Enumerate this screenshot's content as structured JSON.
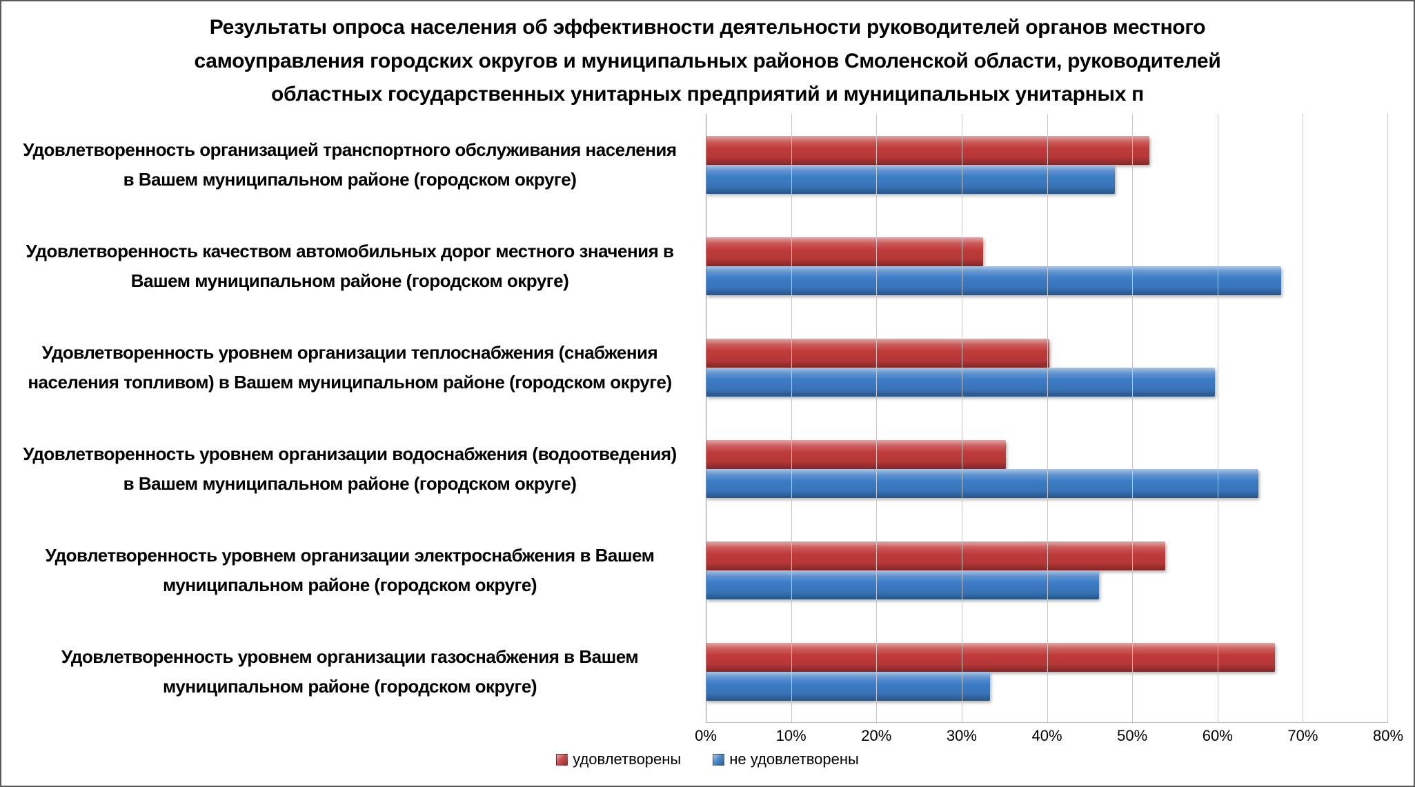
{
  "title_lines": [
    "Результаты опроса населения об эффективности деятельности руководителей органов местного",
    "самоуправления городских округов и муниципальных районов Смоленской области, руководителей",
    "областных государственных унитарных предприятий и муниципальных унитарных п"
  ],
  "chart_data": {
    "type": "bar",
    "orientation": "horizontal",
    "title": "Результаты опроса населения об эффективности деятельности руководителей органов местного самоуправления городских округов и муниципальных районов Смоленской области, руководителей областных государственных унитарных предприятий и муниципальных унитарных п",
    "categories": [
      "Удовлетворенность организацией транспортного обслуживания населения в Вашем муниципальном районе (городском округе)",
      "Удовлетворенность качеством автомобильных дорог местного значения в Вашем муниципальном районе (городском округе)",
      "Удовлетворенность уровнем организации теплоснабжения (снабжения населения топливом) в Вашем муниципальном районе (городском округе)",
      "Удовлетворенность уровнем организации водоснабжения (водоотведения) в Вашем муниципальном районе (городском округе)",
      "Удовлетворенность уровнем организации электроснабжения в Вашем муниципальном районе (городском округе)",
      "Удовлетворенность уровнем организации газоснабжения в Вашем муниципальном районе (городском округе)"
    ],
    "series": [
      {
        "id": "satisfied",
        "name": "удовлетворены",
        "color": "#c13b3b",
        "values": [
          52.0,
          32.5,
          40.3,
          35.2,
          53.9,
          66.7
        ]
      },
      {
        "id": "unsatisfied",
        "name": "не удовлетворены",
        "color": "#3c7cc6",
        "values": [
          48.0,
          67.5,
          59.7,
          64.8,
          46.1,
          33.3
        ]
      }
    ],
    "xlim": [
      0,
      80
    ],
    "x_ticks": [
      "0%",
      "10%",
      "20%",
      "30%",
      "40%",
      "50%",
      "60%",
      "70%",
      "80%"
    ],
    "grid": true,
    "legend_position": "bottom",
    "axis_color": "#8c8c8c",
    "gridline_color": "#c6c6c6"
  }
}
